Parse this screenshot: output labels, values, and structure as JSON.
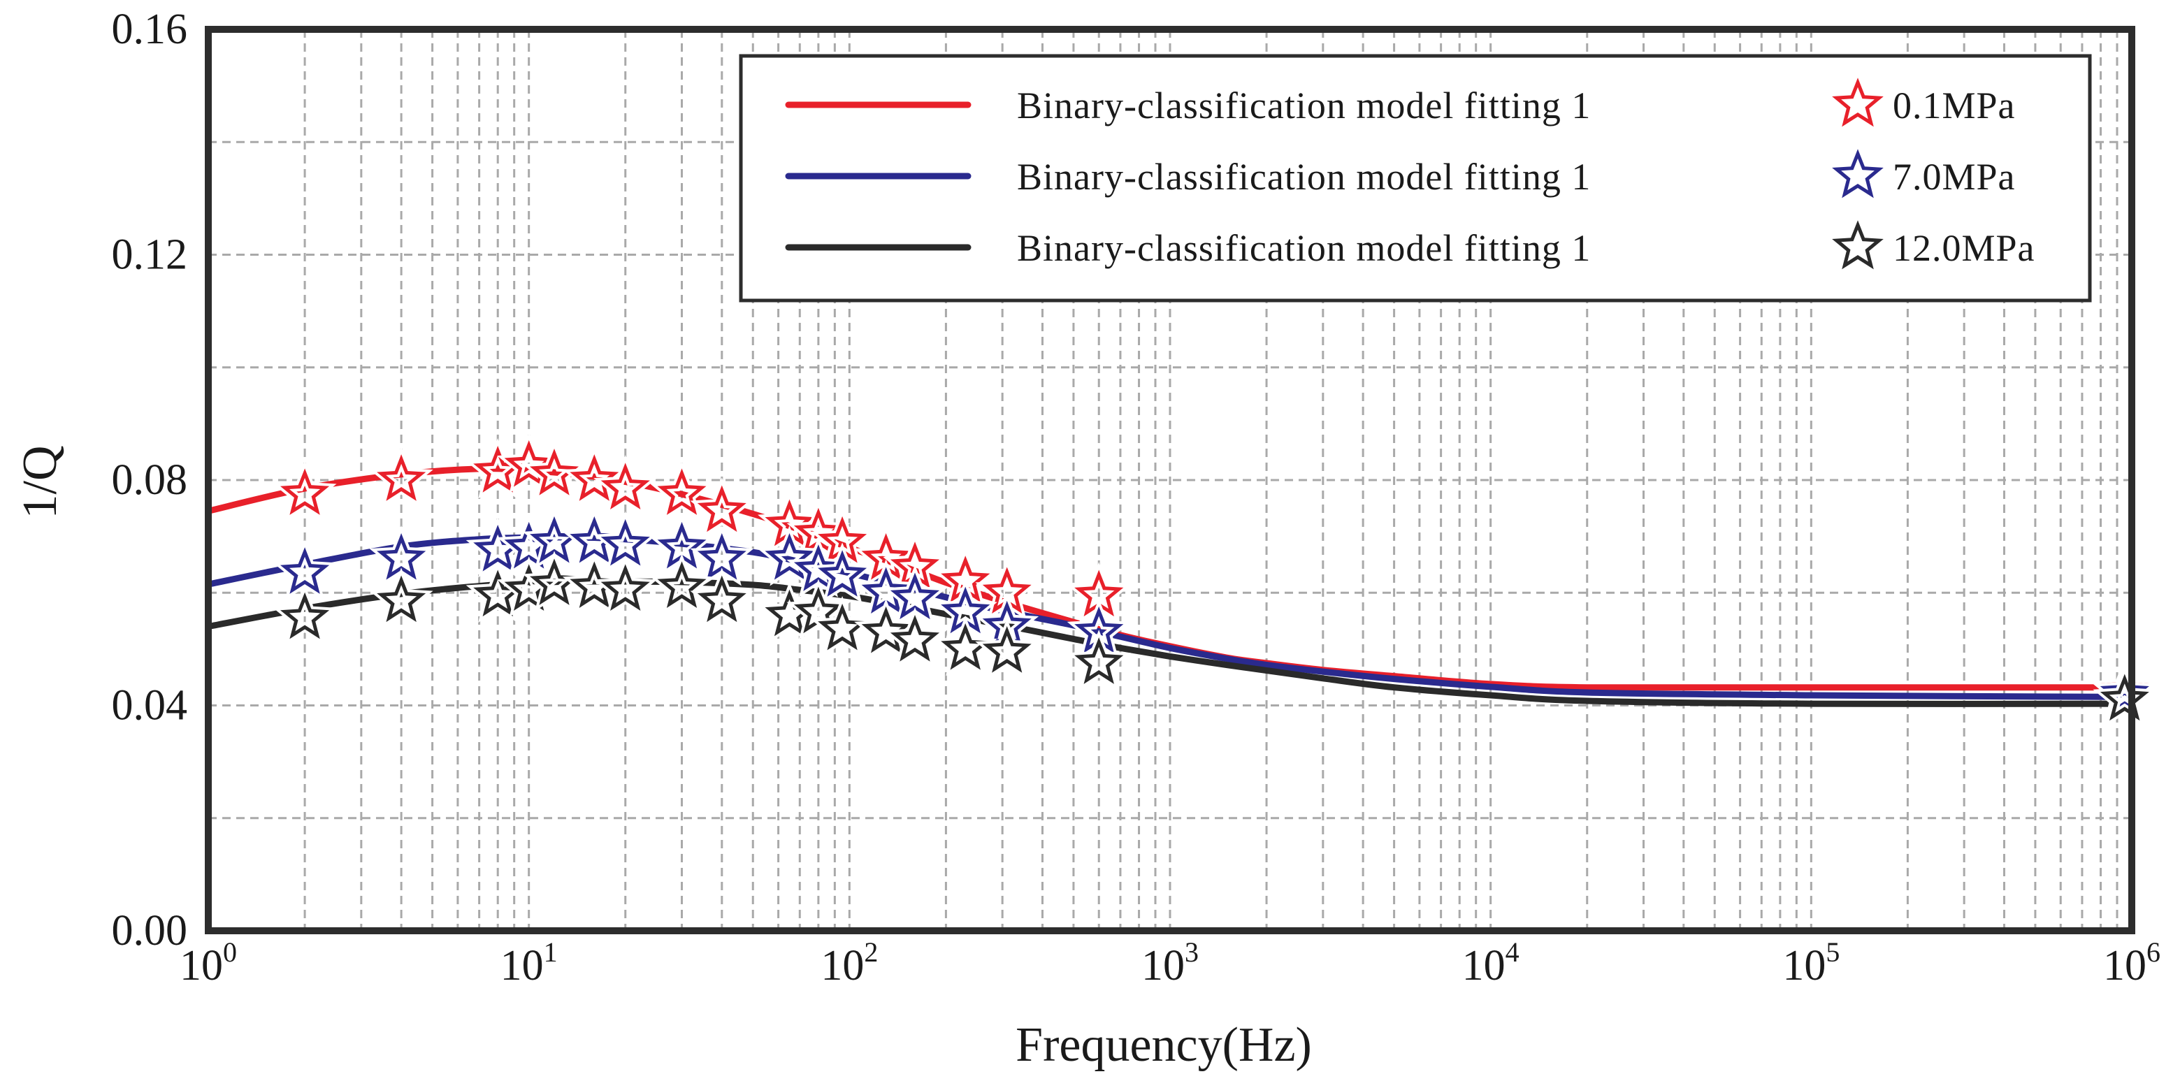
{
  "chart_data": {
    "type": "line",
    "xscale": "log",
    "xlabel": "Frequency(Hz)",
    "ylabel": "1/Q",
    "xlim": [
      1,
      1000000
    ],
    "ylim": [
      0,
      0.16
    ],
    "grid": true,
    "yticks": [
      "0.00",
      "0.04",
      "0.08",
      "0.12",
      "0.16"
    ],
    "xticks": [
      {
        "base": "10",
        "exp": "0",
        "value": 1
      },
      {
        "base": "10",
        "exp": "1",
        "value": 10
      },
      {
        "base": "10",
        "exp": "2",
        "value": 100
      },
      {
        "base": "10",
        "exp": "3",
        "value": 1000
      },
      {
        "base": "10",
        "exp": "4",
        "value": 10000
      },
      {
        "base": "10",
        "exp": "5",
        "value": 100000
      },
      {
        "base": "10",
        "exp": "6",
        "value": 1000000
      }
    ],
    "legend_position": "top-right",
    "series": [
      {
        "name": "Binary-classification model fitting 1",
        "marker_label": "0.1MPa",
        "color": "#e8202a",
        "curve": {
          "x": [
            1,
            2,
            4,
            7,
            10,
            15,
            20,
            30,
            50,
            70,
            100,
            150,
            200,
            300,
            500,
            700,
            1000,
            1500,
            2000,
            3000,
            5000,
            10000,
            20000,
            100000,
            1000000
          ],
          "y": [
            0.0745,
            0.0785,
            0.081,
            0.082,
            0.0817,
            0.0808,
            0.0797,
            0.0775,
            0.074,
            0.0712,
            0.068,
            0.0645,
            0.0618,
            0.0585,
            0.0548,
            0.0525,
            0.0505,
            0.0485,
            0.0475,
            0.0463,
            0.0452,
            0.0438,
            0.0432,
            0.0432,
            0.0432
          ]
        },
        "points": {
          "x": [
            2,
            4,
            8,
            10,
            12,
            16,
            20,
            30,
            40,
            65,
            80,
            95,
            130,
            160,
            230,
            310,
            600,
            950000
          ],
          "y": [
            0.0775,
            0.08,
            0.0815,
            0.0825,
            0.081,
            0.08,
            0.0785,
            0.0775,
            0.0745,
            0.072,
            0.0705,
            0.069,
            0.066,
            0.0645,
            0.062,
            0.06,
            0.0595,
            0.0425
          ]
        }
      },
      {
        "name": "Binary-classification model fitting 1",
        "marker_label": "7.0MPa",
        "color": "#2a2a8e",
        "curve": {
          "x": [
            1,
            2,
            4,
            7,
            10,
            15,
            20,
            30,
            50,
            70,
            100,
            150,
            200,
            300,
            500,
            700,
            1000,
            1500,
            2000,
            3000,
            5000,
            10000,
            20000,
            100000,
            1000000
          ],
          "y": [
            0.0615,
            0.065,
            0.0682,
            0.0695,
            0.0698,
            0.0698,
            0.0695,
            0.0687,
            0.0672,
            0.0655,
            0.0635,
            0.061,
            0.0592,
            0.0568,
            0.0542,
            0.0522,
            0.0502,
            0.0483,
            0.0472,
            0.046,
            0.0447,
            0.0433,
            0.0423,
            0.0418,
            0.0415
          ]
        },
        "points": {
          "x": [
            2,
            4,
            8,
            10,
            12,
            16,
            20,
            30,
            40,
            65,
            80,
            95,
            130,
            160,
            230,
            310,
            600,
            950000
          ],
          "y": [
            0.0635,
            0.066,
            0.0675,
            0.068,
            0.069,
            0.069,
            0.0685,
            0.068,
            0.066,
            0.066,
            0.064,
            0.063,
            0.06,
            0.059,
            0.0565,
            0.054,
            0.053,
            0.042
          ]
        }
      },
      {
        "name": "Binary-classification model fitting 1",
        "marker_label": "12.0MPa",
        "color": "#2a2a2a",
        "curve": {
          "x": [
            1,
            2,
            4,
            7,
            10,
            15,
            20,
            30,
            50,
            70,
            100,
            150,
            200,
            300,
            500,
            700,
            1000,
            1500,
            2000,
            3000,
            5000,
            10000,
            20000,
            100000,
            1000000
          ],
          "y": [
            0.054,
            0.0572,
            0.0598,
            0.0612,
            0.0618,
            0.062,
            0.062,
            0.0619,
            0.0614,
            0.0605,
            0.0594,
            0.0576,
            0.0562,
            0.0543,
            0.0518,
            0.0502,
            0.0487,
            0.0472,
            0.0462,
            0.0448,
            0.0432,
            0.0418,
            0.0408,
            0.0403,
            0.0403
          ]
        },
        "points": {
          "x": [
            2,
            4,
            8,
            10,
            12,
            16,
            20,
            30,
            40,
            65,
            80,
            95,
            130,
            160,
            230,
            310,
            600,
            950000
          ],
          "y": [
            0.0555,
            0.0585,
            0.0595,
            0.0605,
            0.0615,
            0.061,
            0.0605,
            0.061,
            0.0585,
            0.056,
            0.0565,
            0.0535,
            0.053,
            0.0515,
            0.05,
            0.0495,
            0.0475,
            0.041
          ]
        }
      }
    ]
  }
}
